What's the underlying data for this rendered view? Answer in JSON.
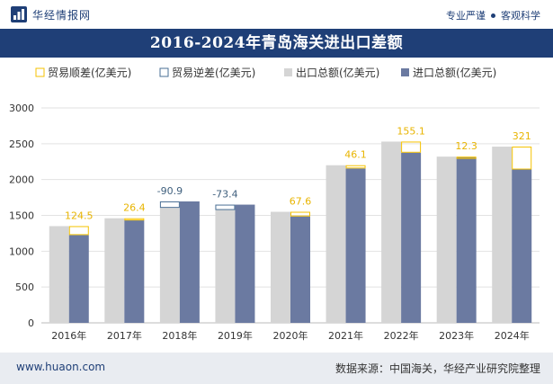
{
  "header": {
    "brand": "华经情报网",
    "slogan_left": "专业严谨",
    "slogan_right": "客观科学"
  },
  "footer": {
    "site": "www.huaon.com",
    "source": "数据来源：中国海关，华经产业研究院整理"
  },
  "colors": {
    "brand_navy": "#1f3f77",
    "export_bar": "#d5d5d5",
    "import_bar": "#6b7aa1",
    "surplus_outline": "#f5c200",
    "deficit_outline": "#4a6f95",
    "surplus_label": "#e8b400",
    "deficit_label": "#40607e"
  },
  "chart_data": {
    "type": "bar",
    "title": "2016-2024年青岛海关进出口差额",
    "categories": [
      "2016年",
      "2017年",
      "2018年",
      "2019年",
      "2020年",
      "2021年",
      "2022年",
      "2023年",
      "2024年"
    ],
    "ylim": [
      0,
      3000
    ],
    "yticks": [
      0,
      500,
      1000,
      1500,
      2000,
      2500,
      3000
    ],
    "grid": true,
    "legend": {
      "position": "top",
      "items": [
        {
          "key": "surplus",
          "label": "贸易顺差(亿美元)"
        },
        {
          "key": "deficit",
          "label": "贸易逆差(亿美元)"
        },
        {
          "key": "export",
          "label": "出口总额(亿美元)"
        },
        {
          "key": "import",
          "label": "进口总额(亿美元)"
        }
      ]
    },
    "series": [
      {
        "key": "export",
        "name": "出口总额(亿美元)",
        "values": [
          1350,
          1460,
          1605,
          1575,
          1550,
          2200,
          2530,
          2320,
          2460
        ]
      },
      {
        "key": "import",
        "name": "进口总额(亿美元)",
        "values": [
          1225,
          1435,
          1695,
          1650,
          1485,
          2155,
          2375,
          2310,
          2140
        ]
      }
    ],
    "balance": {
      "values": [
        124.5,
        26.4,
        -90.9,
        -73.4,
        67.6,
        46.1,
        155.1,
        12.3,
        321
      ],
      "labels": [
        "124.5",
        "26.4",
        "-90.9",
        "-73.4",
        "67.6",
        "46.1",
        "155.1",
        "12.3",
        "321"
      ]
    }
  }
}
